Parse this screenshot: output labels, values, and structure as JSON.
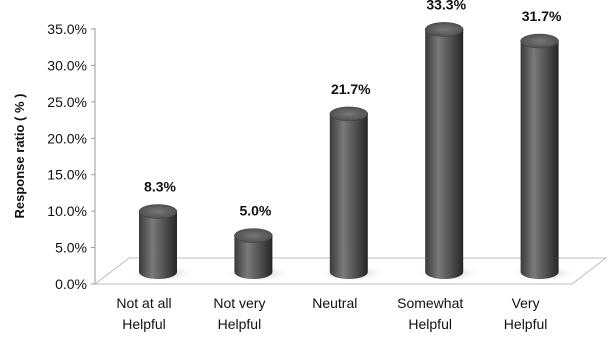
{
  "chart_data": {
    "type": "bar",
    "style": "3d-cylinder",
    "title": "",
    "xlabel": "",
    "ylabel": "Response ratio ( % )",
    "ylim": [
      0,
      35
    ],
    "yticks": [
      "0.0%",
      "5.0%",
      "10.0%",
      "15.0%",
      "20.0%",
      "25.0%",
      "30.0%",
      "35.0%"
    ],
    "categories": [
      [
        "Not at all",
        "Helpful"
      ],
      [
        "Not very",
        "Helpful"
      ],
      [
        "Neutral"
      ],
      [
        "Somewhat",
        "Helpful"
      ],
      [
        "Very",
        "Helpful"
      ]
    ],
    "values": [
      8.3,
      5.0,
      21.7,
      33.3,
      31.7
    ],
    "data_labels": [
      "8.3%",
      "5.0%",
      "21.7%",
      "33.3%",
      "31.7%"
    ],
    "grid": false,
    "legend": "none",
    "colors": {
      "bar": "#5a5a5a",
      "bar_dark": "#2a2a2a",
      "floor": "#ffffff"
    }
  }
}
